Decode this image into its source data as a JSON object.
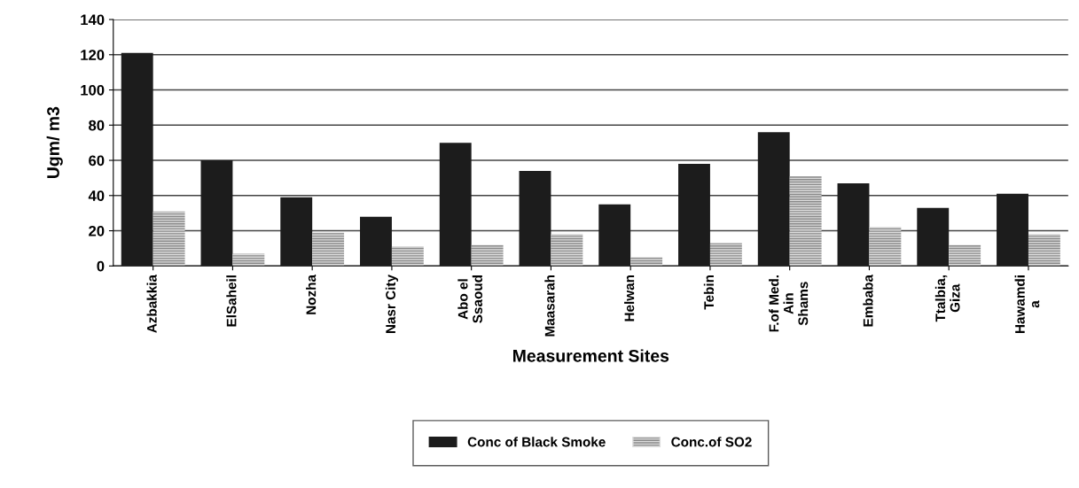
{
  "chart_data": {
    "type": "bar",
    "xlabel": "Measurement Sites",
    "ylabel": "Ugm/ m3",
    "categories": [
      "Azbakkia",
      "ElSaheil",
      "Nozha",
      "Nasr City",
      "Abo el\nSsaoud",
      "Maasarah",
      "Helwan",
      "Tebin",
      "F.of Med.\nAin\nShams",
      "Embaba",
      "Ttalbia,\nGiza",
      "Hawamdi\na"
    ],
    "series": [
      {
        "name": "Conc of Black Smoke",
        "color": "#1c1c1c",
        "values": [
          121,
          60,
          39,
          28,
          70,
          54,
          35,
          58,
          76,
          47,
          33,
          41
        ]
      },
      {
        "name": "Conc.of SO2",
        "color": "#8a8a8a",
        "values": [
          31,
          7,
          19,
          11,
          12,
          18,
          5,
          13,
          51,
          22,
          12,
          18
        ]
      }
    ],
    "ylim": [
      0,
      140
    ],
    "yticks": [
      0,
      20,
      40,
      60,
      80,
      100,
      120,
      140
    ],
    "grid": "y",
    "legend": "bottom"
  }
}
